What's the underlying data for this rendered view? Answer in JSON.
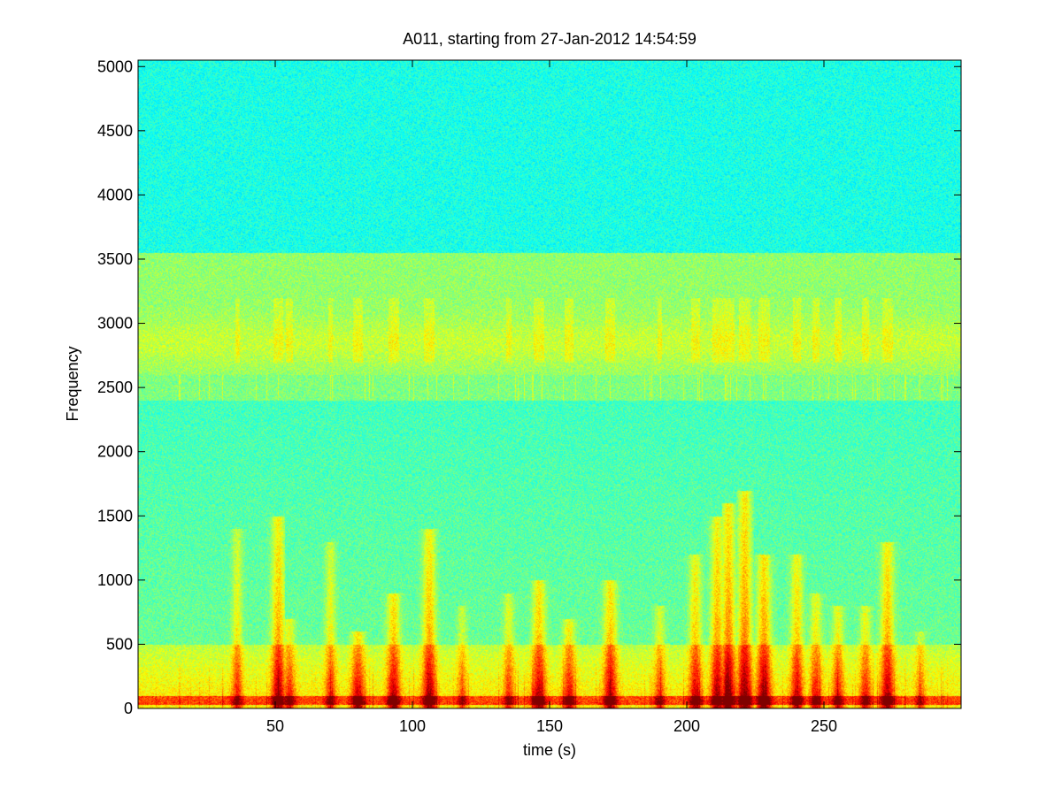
{
  "chart_data": {
    "type": "heatmap",
    "title": "A011, starting from 27-Jan-2012 14:54:59",
    "xlabel": "time (s)",
    "ylabel": "Frequency",
    "xlim": [
      0,
      300
    ],
    "ylim": [
      0,
      5050
    ],
    "xticks": [
      50,
      100,
      150,
      200,
      250
    ],
    "yticks": [
      0,
      500,
      1000,
      1500,
      2000,
      2500,
      3000,
      3500,
      4000,
      4500,
      5000
    ],
    "colormap": "jet",
    "colors": {
      "low": "#1fd9e0",
      "mid_low": "#36f0c2",
      "mid": "#9ef25a",
      "mid_high": "#f2f21a",
      "high": "#e81c0e"
    },
    "bands": [
      {
        "freq_range": [
          3550,
          5050
        ],
        "level": "low"
      },
      {
        "freq_range": [
          2600,
          3550
        ],
        "level": "mid"
      },
      {
        "freq_range": [
          2400,
          2600
        ],
        "level": "mid"
      },
      {
        "freq_range": [
          500,
          2400
        ],
        "level": "mid_low"
      },
      {
        "freq_range": [
          0,
          500
        ],
        "level": "mid_high"
      },
      {
        "freq_range": [
          0,
          100
        ],
        "level": "high"
      }
    ],
    "events": [
      {
        "t": 36,
        "peak_freq": 1400,
        "intensity": 0.6
      },
      {
        "t": 51,
        "peak_freq": 1500,
        "intensity": 0.9
      },
      {
        "t": 55,
        "peak_freq": 700,
        "intensity": 0.7
      },
      {
        "t": 70,
        "peak_freq": 1300,
        "intensity": 0.6
      },
      {
        "t": 80,
        "peak_freq": 600,
        "intensity": 0.9
      },
      {
        "t": 93,
        "peak_freq": 900,
        "intensity": 0.9
      },
      {
        "t": 106,
        "peak_freq": 1400,
        "intensity": 0.9
      },
      {
        "t": 118,
        "peak_freq": 800,
        "intensity": 0.5
      },
      {
        "t": 135,
        "peak_freq": 900,
        "intensity": 0.6
      },
      {
        "t": 146,
        "peak_freq": 1000,
        "intensity": 0.9
      },
      {
        "t": 157,
        "peak_freq": 700,
        "intensity": 0.8
      },
      {
        "t": 172,
        "peak_freq": 1000,
        "intensity": 0.9
      },
      {
        "t": 190,
        "peak_freq": 800,
        "intensity": 0.6
      },
      {
        "t": 203,
        "peak_freq": 1200,
        "intensity": 0.8
      },
      {
        "t": 211,
        "peak_freq": 1500,
        "intensity": 0.9
      },
      {
        "t": 215,
        "peak_freq": 1600,
        "intensity": 1.0
      },
      {
        "t": 221,
        "peak_freq": 1700,
        "intensity": 1.0
      },
      {
        "t": 228,
        "peak_freq": 1200,
        "intensity": 1.0
      },
      {
        "t": 240,
        "peak_freq": 1200,
        "intensity": 0.8
      },
      {
        "t": 247,
        "peak_freq": 900,
        "intensity": 0.7
      },
      {
        "t": 255,
        "peak_freq": 800,
        "intensity": 0.7
      },
      {
        "t": 265,
        "peak_freq": 800,
        "intensity": 0.7
      },
      {
        "t": 273,
        "peak_freq": 1300,
        "intensity": 0.9
      },
      {
        "t": 285,
        "peak_freq": 600,
        "intensity": 0.5
      }
    ]
  }
}
